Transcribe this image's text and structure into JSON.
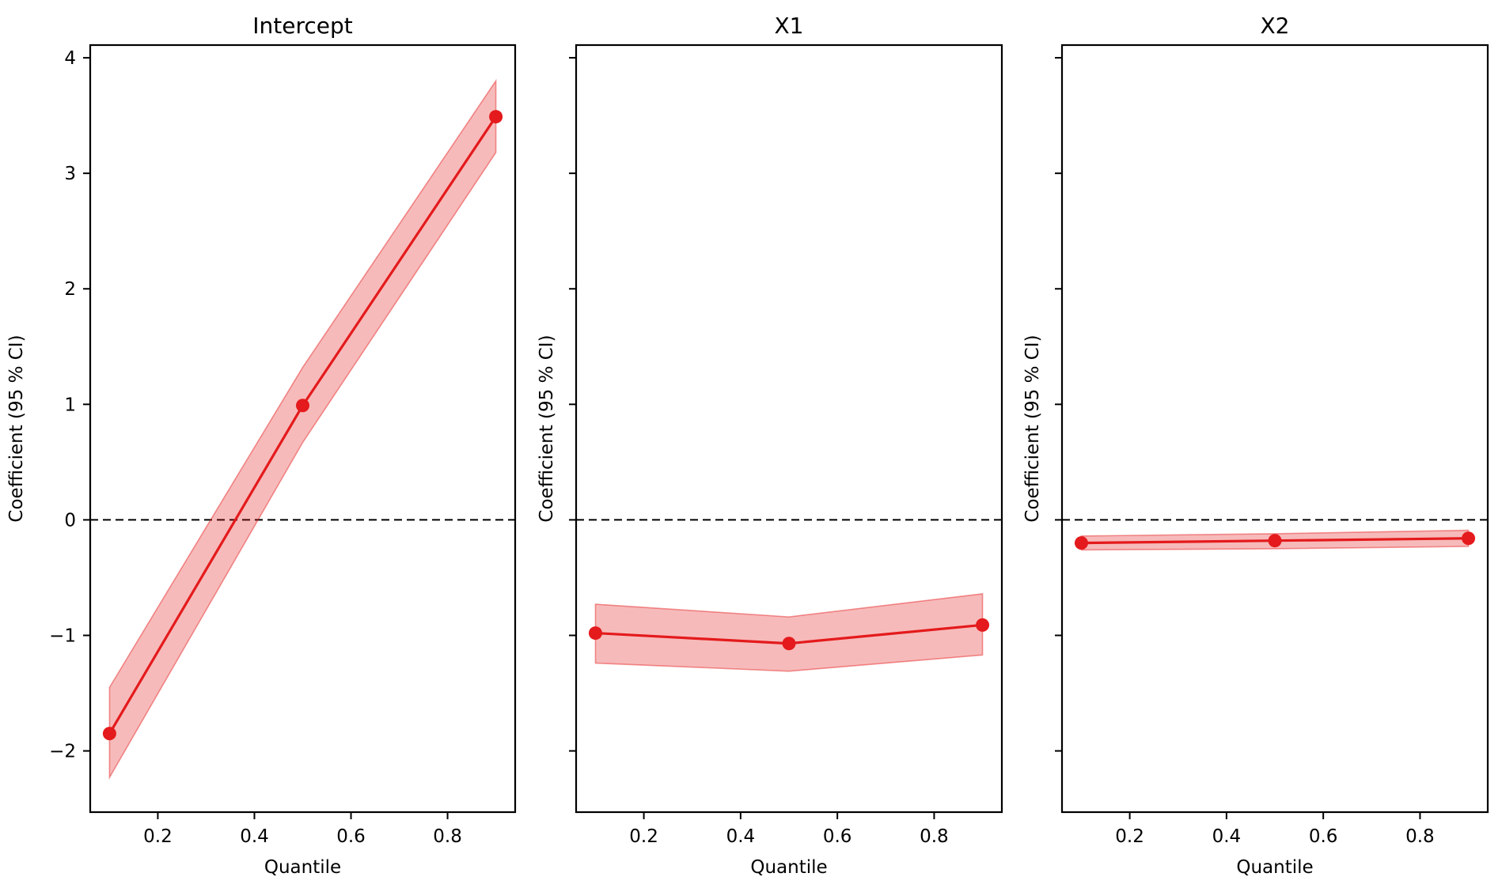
{
  "chart_data": [
    {
      "type": "line",
      "title": "Intercept",
      "xlabel": "Quantile",
      "ylabel": "Coefficient (95 % CI)",
      "x": [
        0.1,
        0.5,
        0.9
      ],
      "series": [
        {
          "name": "coefficient",
          "values": [
            -1.85,
            0.99,
            3.49
          ]
        },
        {
          "name": "ci_lower",
          "values": [
            -2.23,
            0.67,
            3.18
          ]
        },
        {
          "name": "ci_upper",
          "values": [
            -1.45,
            1.32,
            3.8
          ]
        }
      ],
      "xlim": [
        0.06,
        0.94
      ],
      "ylim": [
        -2.53,
        4.11
      ],
      "xticks": [
        0.2,
        0.4,
        0.6,
        0.8
      ],
      "xtick_labels": [
        "0.2",
        "0.4",
        "0.6",
        "0.8"
      ],
      "yticks": [
        -2,
        -1,
        0,
        1,
        2,
        3,
        4
      ],
      "ytick_labels": [
        "−2",
        "−1",
        "0",
        "1",
        "2",
        "3",
        "4"
      ],
      "reference_line": 0,
      "grid": false
    },
    {
      "type": "line",
      "title": "X1",
      "xlabel": "Quantile",
      "ylabel": "Coefficient (95 % CI)",
      "x": [
        0.1,
        0.5,
        0.9
      ],
      "series": [
        {
          "name": "coefficient",
          "values": [
            -0.98,
            -1.07,
            -0.91
          ]
        },
        {
          "name": "ci_lower",
          "values": [
            -1.24,
            -1.31,
            -1.17
          ]
        },
        {
          "name": "ci_upper",
          "values": [
            -0.73,
            -0.84,
            -0.64
          ]
        }
      ],
      "xlim": [
        0.06,
        0.94
      ],
      "ylim": [
        -2.53,
        4.11
      ],
      "xticks": [
        0.2,
        0.4,
        0.6,
        0.8
      ],
      "xtick_labels": [
        "0.2",
        "0.4",
        "0.6",
        "0.8"
      ],
      "yticks": [
        -2,
        -1,
        0,
        1,
        2,
        3,
        4
      ],
      "ytick_labels": [],
      "reference_line": 0,
      "grid": false
    },
    {
      "type": "line",
      "title": "X2",
      "xlabel": "Quantile",
      "ylabel": "Coefficient (95 % CI)",
      "x": [
        0.1,
        0.5,
        0.9
      ],
      "series": [
        {
          "name": "coefficient",
          "values": [
            -0.2,
            -0.18,
            -0.16
          ]
        },
        {
          "name": "ci_lower",
          "values": [
            -0.26,
            -0.25,
            -0.23
          ]
        },
        {
          "name": "ci_upper",
          "values": [
            -0.14,
            -0.12,
            -0.09
          ]
        }
      ],
      "xlim": [
        0.06,
        0.94
      ],
      "ylim": [
        -2.53,
        4.11
      ],
      "xticks": [
        0.2,
        0.4,
        0.6,
        0.8
      ],
      "xtick_labels": [
        "0.2",
        "0.4",
        "0.6",
        "0.8"
      ],
      "yticks": [
        -2,
        -1,
        0,
        1,
        2,
        3,
        4
      ],
      "ytick_labels": [],
      "reference_line": 0,
      "grid": false
    }
  ],
  "colors": {
    "line": "#e41a1c",
    "band": "#e41a1c",
    "band_opacity": 0.3,
    "reference_line": "#000000"
  }
}
